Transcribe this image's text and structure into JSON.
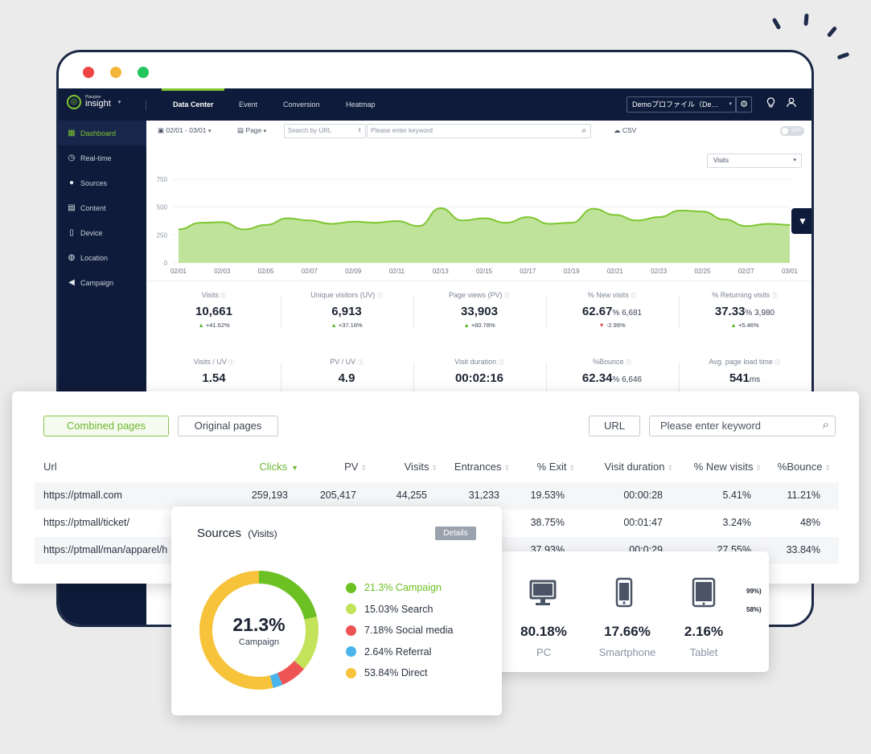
{
  "window": {
    "traffic_lights": [
      "#ef4444",
      "#f5b53a",
      "#22c55e"
    ]
  },
  "topnav": {
    "logo_small": "Plangine",
    "logo_name": "insight",
    "tabs": [
      "Data Center",
      "Event",
      "Conversion",
      "Heatmap"
    ],
    "active_tab": "Data Center",
    "profile": "Demoプロファイル（De…"
  },
  "sidebar": {
    "items": [
      {
        "label": "Dashboard",
        "icon": "grid-icon"
      },
      {
        "label": "Real-time",
        "icon": "clock-icon"
      },
      {
        "label": "Sources",
        "icon": "drops-icon"
      },
      {
        "label": "Content",
        "icon": "content-icon"
      },
      {
        "label": "Device",
        "icon": "phone-icon"
      },
      {
        "label": "Location",
        "icon": "globe-icon"
      },
      {
        "label": "Campaign",
        "icon": "megaphone-icon"
      }
    ]
  },
  "filter": {
    "date_range": "02/01 - 03/01",
    "page_select": "Page",
    "search_by": "Search by URL",
    "keyword_placeholder": "Please enter keyword",
    "csv": "CSV",
    "toggle": "OFF",
    "metric_select": "Visits"
  },
  "chart_data": {
    "type": "area",
    "x": [
      "02/01",
      "02/02",
      "02/03",
      "02/04",
      "02/05",
      "02/06",
      "02/07",
      "02/08",
      "02/09",
      "02/10",
      "02/11",
      "02/12",
      "02/13",
      "02/14",
      "02/15",
      "02/16",
      "02/17",
      "02/18",
      "02/19",
      "02/20",
      "02/21",
      "02/22",
      "02/23",
      "02/24",
      "02/25",
      "02/26",
      "02/27",
      "02/28",
      "03/01"
    ],
    "x_tick_labels": [
      "02/01",
      "02/03",
      "02/05",
      "02/07",
      "02/09",
      "02/11",
      "02/13",
      "02/15",
      "02/17",
      "02/19",
      "02/21",
      "02/23",
      "02/25",
      "02/27",
      "03/01"
    ],
    "values": [
      300,
      360,
      365,
      300,
      340,
      400,
      380,
      350,
      370,
      360,
      375,
      330,
      490,
      380,
      400,
      360,
      410,
      350,
      360,
      485,
      430,
      380,
      410,
      470,
      460,
      390,
      330,
      350,
      340
    ],
    "yticks": [
      0,
      250,
      500,
      750
    ],
    "ylim": [
      0,
      750
    ],
    "color": "#7ec630"
  },
  "metrics": [
    {
      "label": "Visits",
      "value": "10,661",
      "sub": "",
      "change": "+41.62%",
      "dir": "up"
    },
    {
      "label": "Unique visitors (UV)",
      "value": "6,913",
      "sub": "",
      "change": "+37.16%",
      "dir": "up"
    },
    {
      "label": "Page views (PV)",
      "value": "33,903",
      "sub": "",
      "change": "+60.78%",
      "dir": "up"
    },
    {
      "label": "% New visits",
      "value": "62.67",
      "sub": "% 6,681",
      "change": "-2.99%",
      "dir": "down"
    },
    {
      "label": "% Returning visits",
      "value": "37.33",
      "sub": "% 3,980",
      "change": "+5.46%",
      "dir": "up"
    },
    {
      "label": "Visits / UV",
      "value": "1.54",
      "sub": ""
    },
    {
      "label": "PV / UV",
      "value": "4.9",
      "sub": ""
    },
    {
      "label": "Visit duration",
      "value": "00:02:16",
      "sub": ""
    },
    {
      "label": "%Bounce",
      "value": "62.34",
      "sub": "% 6,646"
    },
    {
      "label": "Avg. page load time",
      "value": "541",
      "sub": "ms"
    }
  ],
  "pages_table": {
    "buttons": {
      "combined": "Combined pages",
      "original": "Original pages",
      "url": "URL",
      "search_placeholder": "Please enter keyword"
    },
    "headers": [
      "Url",
      "Clicks",
      "PV",
      "Visits",
      "Entrances",
      "% Exit",
      "Visit duration",
      "% New visits",
      "%Bounce"
    ],
    "rows": [
      [
        "https://ptmall.com",
        "259,193",
        "205,417",
        "44,255",
        "31,233",
        "19.53%",
        "00:00:28",
        "5.41%",
        "11.21%"
      ],
      [
        "https://ptmall/ticket/",
        "",
        "",
        "",
        "",
        "38.75%",
        "00:01:47",
        "3.24%",
        "48%"
      ],
      [
        "https://ptmall/man/apparel/h",
        "",
        "",
        "",
        "",
        "37.93%",
        "00:0:29",
        "27.55%",
        "33.84%"
      ]
    ],
    "peek": [
      "99%)",
      "58%)"
    ]
  },
  "sources": {
    "title": "Sources",
    "subtitle": "(Visits)",
    "details": "Details",
    "center_value": "21.3%",
    "center_label": "Campaign",
    "slices": [
      {
        "label": "21.3% Campaign",
        "value": 21.3,
        "color": "#6cc024"
      },
      {
        "label": "15.03% Search",
        "value": 15.03,
        "color": "#c2e35a"
      },
      {
        "label": "7.18% Social media",
        "value": 7.18,
        "color": "#ef5454"
      },
      {
        "label": "2.64% Referral",
        "value": 2.64,
        "color": "#4ab5ec"
      },
      {
        "label": "53.84% Direct",
        "value": 53.84,
        "color": "#f6c33a"
      }
    ]
  },
  "devices": [
    {
      "value": "80.18%",
      "label": "PC",
      "icon": "monitor-icon"
    },
    {
      "value": "17.66%",
      "label": "Smartphone",
      "icon": "smartphone-icon"
    },
    {
      "value": "2.16%",
      "label": "Tablet",
      "icon": "tablet-icon"
    }
  ]
}
